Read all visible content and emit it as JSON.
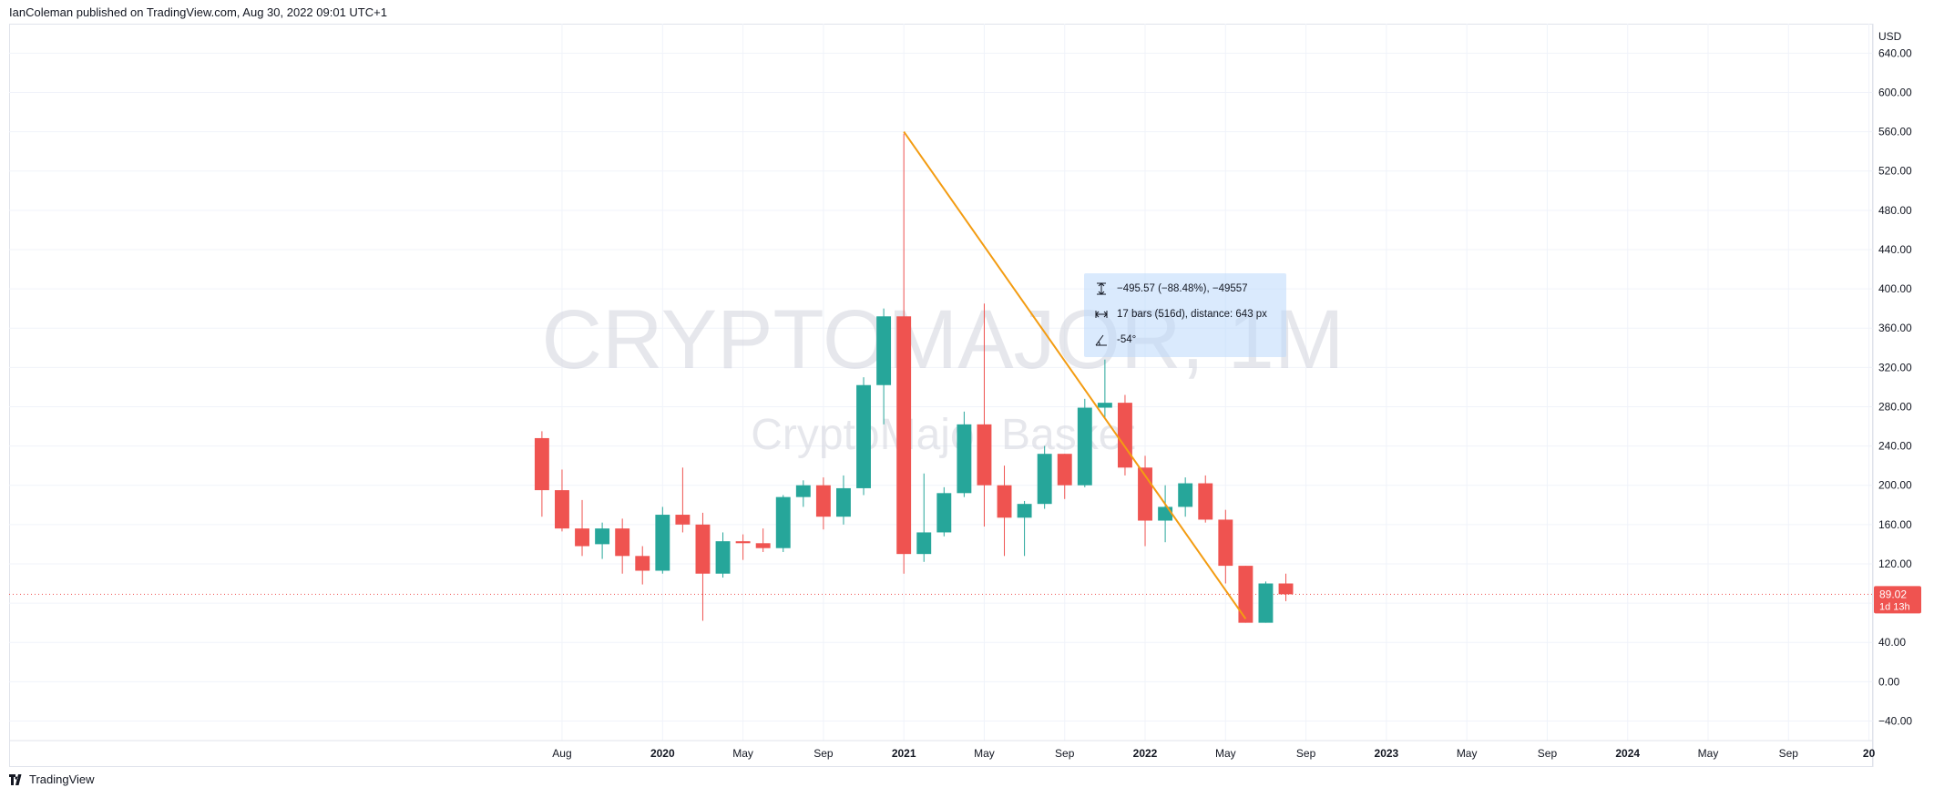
{
  "header": {
    "published": "IanColeman published on TradingView.com, Aug 30, 2022 09:01 UTC+1"
  },
  "footer": {
    "brand": "TradingView"
  },
  "watermark": {
    "symbol": "CRYPTOMAJOR, 1M",
    "subtitle": "CryptoMajor Basket"
  },
  "ruler": {
    "price_change": "−495.57 (−88.48%), −49557",
    "bars_info": "17 bars (516d), distance: 643 px",
    "angle": "-54°"
  },
  "colors": {
    "up": "#26a69a",
    "down": "#ef5350",
    "trendline": "#f39c12",
    "price_line": "#ef5350",
    "ruler_bg": "#bbd9fb"
  },
  "chart_data": {
    "type": "candlestick",
    "timeframe": "1M",
    "currency": "USD",
    "last_price": {
      "value": "89.02",
      "countdown": "1d 13h"
    },
    "y_ticks": [
      "640.00",
      "600.00",
      "560.00",
      "520.00",
      "480.00",
      "440.00",
      "400.00",
      "360.00",
      "320.00",
      "280.00",
      "240.00",
      "200.00",
      "160.00",
      "120.00",
      "80.00",
      "40.00",
      "0.00",
      "−40.00"
    ],
    "ylim": [
      -60,
      670
    ],
    "x_ticks": [
      {
        "label": "Aug",
        "bar": 1,
        "bold": false
      },
      {
        "label": "2020",
        "bar": 6,
        "bold": true
      },
      {
        "label": "May",
        "bar": 10,
        "bold": false
      },
      {
        "label": "Sep",
        "bar": 14,
        "bold": false
      },
      {
        "label": "2021",
        "bar": 18,
        "bold": true
      },
      {
        "label": "May",
        "bar": 22,
        "bold": false
      },
      {
        "label": "Sep",
        "bar": 26,
        "bold": false
      },
      {
        "label": "2022",
        "bar": 30,
        "bold": true
      },
      {
        "label": "May",
        "bar": 34,
        "bold": false
      },
      {
        "label": "Sep",
        "bar": 38,
        "bold": false
      },
      {
        "label": "2023",
        "bar": 42,
        "bold": true
      },
      {
        "label": "May",
        "bar": 46,
        "bold": false
      },
      {
        "label": "Sep",
        "bar": 50,
        "bold": false
      },
      {
        "label": "2024",
        "bar": 54,
        "bold": true
      },
      {
        "label": "May",
        "bar": 58,
        "bold": false
      },
      {
        "label": "Sep",
        "bar": 62,
        "bold": false
      },
      {
        "label": "20",
        "bar": 66,
        "bold": true
      }
    ],
    "xlim_bars": [
      -26.5,
      66.2
    ],
    "candles": [
      {
        "o": 248,
        "h": 255,
        "l": 168,
        "c": 195
      },
      {
        "o": 195,
        "h": 216,
        "l": 153,
        "c": 156
      },
      {
        "o": 156,
        "h": 185,
        "l": 128,
        "c": 138
      },
      {
        "o": 140,
        "h": 162,
        "l": 125,
        "c": 156
      },
      {
        "o": 156,
        "h": 166,
        "l": 110,
        "c": 128
      },
      {
        "o": 128,
        "h": 138,
        "l": 99,
        "c": 113
      },
      {
        "o": 113,
        "h": 178,
        "l": 110,
        "c": 170
      },
      {
        "o": 170,
        "h": 218,
        "l": 152,
        "c": 160
      },
      {
        "o": 160,
        "h": 172,
        "l": 62,
        "c": 110
      },
      {
        "o": 110,
        "h": 152,
        "l": 106,
        "c": 143
      },
      {
        "o": 143,
        "h": 150,
        "l": 124,
        "c": 141
      },
      {
        "o": 141,
        "h": 156,
        "l": 132,
        "c": 136
      },
      {
        "o": 136,
        "h": 190,
        "l": 132,
        "c": 188
      },
      {
        "o": 188,
        "h": 205,
        "l": 178,
        "c": 200
      },
      {
        "o": 200,
        "h": 208,
        "l": 155,
        "c": 168
      },
      {
        "o": 168,
        "h": 210,
        "l": 160,
        "c": 197
      },
      {
        "o": 197,
        "h": 310,
        "l": 190,
        "c": 302
      },
      {
        "o": 302,
        "h": 380,
        "l": 262,
        "c": 372
      },
      {
        "o": 372,
        "h": 558,
        "l": 110,
        "c": 130
      },
      {
        "o": 130,
        "h": 212,
        "l": 122,
        "c": 152
      },
      {
        "o": 152,
        "h": 198,
        "l": 148,
        "c": 192
      },
      {
        "o": 192,
        "h": 275,
        "l": 188,
        "c": 262
      },
      {
        "o": 262,
        "h": 385,
        "l": 158,
        "c": 200
      },
      {
        "o": 200,
        "h": 220,
        "l": 128,
        "c": 167
      },
      {
        "o": 167,
        "h": 184,
        "l": 128,
        "c": 181
      },
      {
        "o": 181,
        "h": 240,
        "l": 176,
        "c": 232
      },
      {
        "o": 232,
        "h": 232,
        "l": 186,
        "c": 200
      },
      {
        "o": 200,
        "h": 288,
        "l": 198,
        "c": 279
      },
      {
        "o": 279,
        "h": 328,
        "l": 268,
        "c": 284
      },
      {
        "o": 284,
        "h": 292,
        "l": 210,
        "c": 218
      },
      {
        "o": 218,
        "h": 230,
        "l": 138,
        "c": 164
      },
      {
        "o": 164,
        "h": 200,
        "l": 142,
        "c": 178
      },
      {
        "o": 178,
        "h": 208,
        "l": 168,
        "c": 202
      },
      {
        "o": 202,
        "h": 210,
        "l": 162,
        "c": 165
      },
      {
        "o": 165,
        "h": 175,
        "l": 100,
        "c": 118
      },
      {
        "o": 118,
        "h": 118,
        "l": 60,
        "c": 60
      },
      {
        "o": 60,
        "h": 102,
        "l": 60,
        "c": 100
      },
      {
        "o": 100,
        "h": 110,
        "l": 82,
        "c": 89
      }
    ],
    "trendline": {
      "from": {
        "bar": 18,
        "price": 560
      },
      "to": {
        "bar": 35,
        "price": 64
      }
    }
  }
}
